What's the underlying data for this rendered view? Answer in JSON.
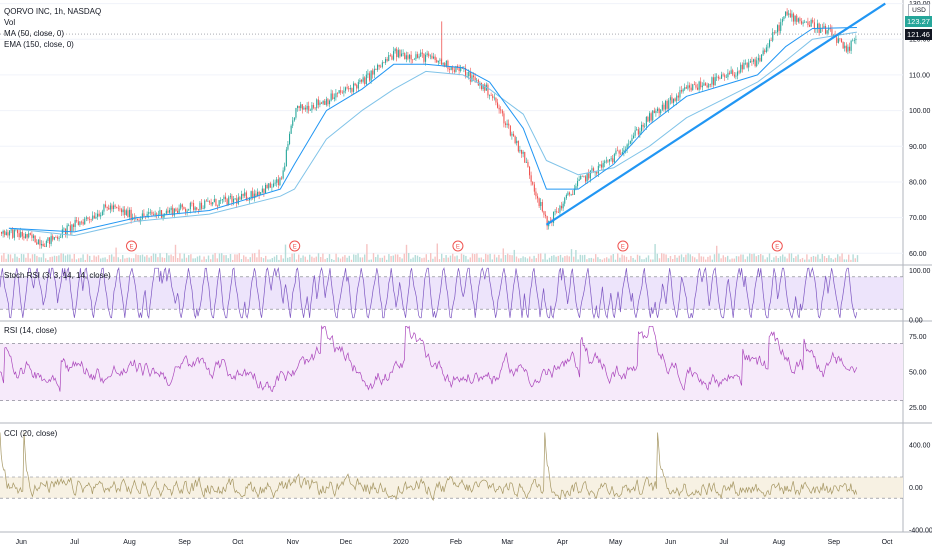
{
  "legend": {
    "title": "QORVO INC, 1h, NASDAQ",
    "vol": "Vol",
    "ma": "MA (50, close, 0)",
    "ema": "EMA (150, close, 0)"
  },
  "currency": "USD",
  "badges": {
    "ma_value": "123.27",
    "last_price": "121.46"
  },
  "panes": {
    "stoch": {
      "label": "Stoch RSI (3, 3, 14, 14, close)",
      "ticks": [
        "100.00",
        "0.00"
      ]
    },
    "rsi": {
      "label": "RSI (14, close)",
      "ticks": [
        "75.00",
        "50.00",
        "25.00"
      ]
    },
    "cci": {
      "label": "CCI (20, close)",
      "ticks": [
        "400.00",
        "0.00",
        "-400.00"
      ]
    }
  },
  "colors": {
    "up": "#26a69a",
    "down": "#ef5350",
    "trendline": "#2196f3",
    "ma": "#2196f3",
    "ema": "#80c3e8",
    "stoch": "#7e57c2",
    "rsi": "#ab47bc",
    "cci": "#a69764",
    "ma_badge": "#26a69a",
    "price_badge": "#131722"
  },
  "chart_data": [
    {
      "type": "line",
      "title": "QORVO INC, 1h, NASDAQ",
      "x_labels": [
        "Jun",
        "Jul",
        "Aug",
        "Sep",
        "Oct",
        "Nov",
        "Dec",
        "2020",
        "Feb",
        "Mar",
        "Apr",
        "May",
        "Jun",
        "Jul",
        "Aug",
        "Sep",
        "Oct"
      ],
      "ylim": [
        57,
        131
      ],
      "y_ticks": [
        60,
        70,
        80,
        90,
        100,
        110,
        120,
        130
      ],
      "series": [
        {
          "name": "price",
          "style": "candlestick",
          "x": [
            "2019-05-25",
            "2019-06-15",
            "2019-07-01",
            "2019-07-20",
            "2019-08-05",
            "2019-08-25",
            "2019-09-15",
            "2019-10-01",
            "2019-10-25",
            "2019-11-02",
            "2019-11-20",
            "2019-12-10",
            "2019-12-28",
            "2020-01-15",
            "2020-02-05",
            "2020-02-20",
            "2020-03-10",
            "2020-03-23",
            "2020-04-10",
            "2020-04-30",
            "2020-05-20",
            "2020-06-10",
            "2020-06-30",
            "2020-07-20",
            "2020-08-05",
            "2020-08-20",
            "2020-09-01",
            "2020-09-08",
            "2020-09-14"
          ],
          "values": [
            66,
            63,
            68,
            73,
            70,
            72,
            74,
            75,
            80,
            100,
            103,
            108,
            116,
            115,
            111,
            105,
            87,
            68,
            80,
            87,
            98,
            106,
            109,
            114,
            127,
            124,
            121,
            116,
            121.5
          ]
        },
        {
          "name": "MA (50, close, 0)",
          "x": [
            "2019-05-25",
            "2019-07-01",
            "2019-08-05",
            "2019-09-15",
            "2019-10-25",
            "2019-11-02",
            "2019-11-20",
            "2019-12-10",
            "2019-12-28",
            "2020-01-15",
            "2020-02-05",
            "2020-02-20",
            "2020-03-10",
            "2020-03-23",
            "2020-04-10",
            "2020-04-30",
            "2020-05-20",
            "2020-06-10",
            "2020-06-30",
            "2020-07-20",
            "2020-08-05",
            "2020-08-20",
            "2020-09-14"
          ],
          "values": [
            67,
            66,
            70,
            72,
            78,
            85,
            100,
            106,
            113,
            113,
            112,
            108,
            95,
            78,
            78,
            85,
            96,
            104,
            107,
            110,
            118,
            123,
            123.3
          ]
        },
        {
          "name": "EMA (150, close, 0)",
          "x": [
            "2019-05-25",
            "2019-07-01",
            "2019-08-05",
            "2019-09-15",
            "2019-10-25",
            "2019-11-02",
            "2019-11-20",
            "2019-12-10",
            "2019-12-28",
            "2020-01-15",
            "2020-02-05",
            "2020-02-20",
            "2020-03-10",
            "2020-03-23",
            "2020-04-10",
            "2020-04-30",
            "2020-05-20",
            "2020-06-10",
            "2020-06-30",
            "2020-07-20",
            "2020-08-05",
            "2020-08-20",
            "2020-09-14"
          ],
          "values": [
            67,
            65,
            69,
            71,
            76,
            78,
            92,
            100,
            106,
            111,
            110,
            106,
            99,
            86,
            82,
            84,
            90,
            98,
            103,
            108,
            114,
            120,
            122
          ]
        },
        {
          "name": "trendline",
          "x": [
            "2020-03-23",
            "2020-09-30"
          ],
          "values": [
            68,
            130
          ]
        }
      ]
    },
    {
      "type": "line",
      "title": "Stoch RSI (3, 3, 14, 14, close)",
      "ylim": [
        0,
        100
      ],
      "y_ticks": [
        0,
        100
      ],
      "band": [
        20,
        80
      ]
    },
    {
      "type": "line",
      "title": "RSI (14, close)",
      "ylim": [
        15,
        85
      ],
      "y_ticks": [
        25,
        50,
        75
      ],
      "band": [
        30,
        70
      ]
    },
    {
      "type": "line",
      "title": "CCI (20, close)",
      "ylim": [
        -400,
        600
      ],
      "y_ticks": [
        -400,
        0,
        400
      ],
      "band": [
        -100,
        100
      ]
    }
  ]
}
